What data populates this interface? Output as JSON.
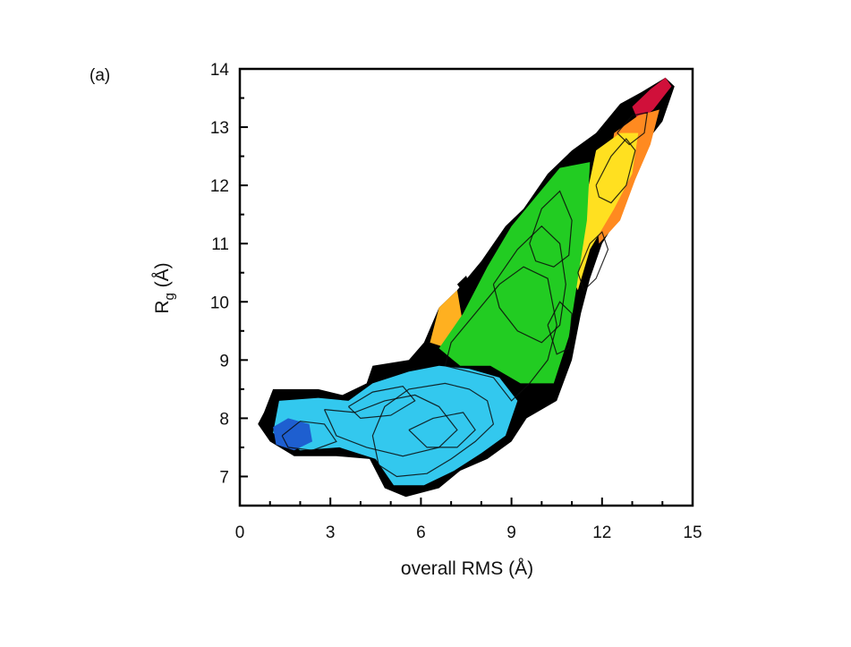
{
  "chart_data": {
    "type": "heatmap",
    "panel_label": "(a)",
    "xlabel": "overall RMS (Å)",
    "ylabel_main": "R",
    "ylabel_sub": "g",
    "ylabel_rest": " (Å)",
    "xlim": [
      0,
      15
    ],
    "ylim": [
      6.5,
      14
    ],
    "xticks": [
      0,
      3,
      6,
      9,
      12,
      15
    ],
    "yticks": [
      7,
      8,
      9,
      10,
      11,
      12,
      13,
      14
    ],
    "grid": false,
    "colormap": [
      "#1e5fd0",
      "#33c8ee",
      "#22cc22",
      "#ffe020",
      "#ff8a20",
      "#d0103a"
    ],
    "populated_region_outline": [
      [
        0.8,
        8.1
      ],
      [
        1.1,
        8.5
      ],
      [
        2.6,
        8.5
      ],
      [
        3.4,
        8.4
      ],
      [
        4.2,
        8.6
      ],
      [
        4.4,
        8.9
      ],
      [
        5.6,
        9.0
      ],
      [
        6.1,
        9.3
      ],
      [
        6.6,
        9.9
      ],
      [
        7.2,
        10.2
      ],
      [
        8.0,
        10.7
      ],
      [
        8.8,
        11.3
      ],
      [
        9.4,
        11.6
      ],
      [
        10.2,
        12.2
      ],
      [
        11.0,
        12.6
      ],
      [
        11.8,
        12.9
      ],
      [
        12.6,
        13.4
      ],
      [
        13.3,
        13.6
      ],
      [
        14.1,
        13.85
      ],
      [
        14.4,
        13.7
      ],
      [
        14.0,
        13.1
      ],
      [
        13.4,
        12.7
      ],
      [
        13.0,
        12.0
      ],
      [
        12.6,
        11.5
      ],
      [
        12.0,
        11.0
      ],
      [
        11.6,
        10.4
      ],
      [
        11.3,
        9.8
      ],
      [
        11.0,
        9.0
      ],
      [
        10.5,
        8.3
      ],
      [
        9.5,
        8.0
      ],
      [
        9.0,
        7.6
      ],
      [
        8.2,
        7.3
      ],
      [
        7.3,
        7.1
      ],
      [
        6.6,
        6.8
      ],
      [
        5.5,
        6.65
      ],
      [
        4.8,
        6.8
      ],
      [
        4.3,
        7.3
      ],
      [
        3.2,
        7.35
      ],
      [
        1.8,
        7.35
      ],
      [
        1.0,
        7.6
      ],
      [
        0.6,
        7.9
      ]
    ],
    "color_zones": [
      {
        "level": "high",
        "color": "#d0103a",
        "points": [
          [
            13.0,
            13.35
          ],
          [
            13.6,
            13.65
          ],
          [
            14.1,
            13.85
          ],
          [
            14.3,
            13.7
          ],
          [
            13.7,
            13.3
          ],
          [
            13.2,
            13.1
          ]
        ]
      },
      {
        "level": "orange",
        "color": "#ff8a20",
        "points": [
          [
            12.4,
            12.9
          ],
          [
            13.2,
            13.2
          ],
          [
            13.9,
            13.3
          ],
          [
            13.6,
            12.7
          ],
          [
            13.1,
            12.1
          ],
          [
            12.6,
            11.4
          ],
          [
            11.9,
            11.0
          ],
          [
            11.8,
            11.6
          ],
          [
            12.2,
            12.2
          ]
        ]
      },
      {
        "level": "yellow",
        "color": "#ffe020",
        "points": [
          [
            11.8,
            12.6
          ],
          [
            12.6,
            12.9
          ],
          [
            13.2,
            12.9
          ],
          [
            13.0,
            12.2
          ],
          [
            12.4,
            11.6
          ],
          [
            11.6,
            10.9
          ],
          [
            11.2,
            10.2
          ],
          [
            10.9,
            10.5
          ],
          [
            11.3,
            11.4
          ],
          [
            11.6,
            12.1
          ]
        ]
      },
      {
        "level": "orange-left",
        "color": "#ffb020",
        "points": [
          [
            6.3,
            9.3
          ],
          [
            6.6,
            9.9
          ],
          [
            7.2,
            10.2
          ],
          [
            7.4,
            9.6
          ],
          [
            6.9,
            9.2
          ]
        ]
      },
      {
        "level": "green",
        "color": "#22cc22",
        "points": [
          [
            6.6,
            9.2
          ],
          [
            7.4,
            9.8
          ],
          [
            8.2,
            10.6
          ],
          [
            9.0,
            11.3
          ],
          [
            9.8,
            11.8
          ],
          [
            10.6,
            12.3
          ],
          [
            11.6,
            12.4
          ],
          [
            11.5,
            11.4
          ],
          [
            11.2,
            10.4
          ],
          [
            10.9,
            9.4
          ],
          [
            10.4,
            8.6
          ],
          [
            9.3,
            8.6
          ],
          [
            8.3,
            8.9
          ],
          [
            7.3,
            8.9
          ]
        ]
      },
      {
        "level": "cyan",
        "color": "#33c8ee",
        "points": [
          [
            1.3,
            8.3
          ],
          [
            2.6,
            8.35
          ],
          [
            3.6,
            8.3
          ],
          [
            4.4,
            8.6
          ],
          [
            5.6,
            8.8
          ],
          [
            6.6,
            8.9
          ],
          [
            7.6,
            8.85
          ],
          [
            8.6,
            8.7
          ],
          [
            9.2,
            8.3
          ],
          [
            8.8,
            7.7
          ],
          [
            8.0,
            7.4
          ],
          [
            7.1,
            7.1
          ],
          [
            6.1,
            6.85
          ],
          [
            5.1,
            6.85
          ],
          [
            4.5,
            7.3
          ],
          [
            3.3,
            7.5
          ],
          [
            2.0,
            7.45
          ],
          [
            1.1,
            7.75
          ]
        ]
      },
      {
        "level": "low",
        "color": "#1e5fd0",
        "points": [
          [
            1.1,
            7.85
          ],
          [
            1.6,
            8.0
          ],
          [
            2.3,
            7.9
          ],
          [
            2.4,
            7.6
          ],
          [
            1.8,
            7.45
          ],
          [
            1.2,
            7.55
          ]
        ]
      }
    ],
    "contour_lines": [
      [
        [
          1.4,
          7.7
        ],
        [
          2.0,
          7.95
        ],
        [
          2.8,
          7.9
        ],
        [
          3.2,
          7.6
        ],
        [
          2.4,
          7.45
        ],
        [
          1.6,
          7.5
        ],
        [
          1.4,
          7.7
        ]
      ],
      [
        [
          2.8,
          8.15
        ],
        [
          3.8,
          8.1
        ],
        [
          4.8,
          8.3
        ],
        [
          5.8,
          8.4
        ],
        [
          6.6,
          8.2
        ],
        [
          7.2,
          7.8
        ],
        [
          6.6,
          7.5
        ],
        [
          5.4,
          7.35
        ],
        [
          4.2,
          7.5
        ],
        [
          3.2,
          7.7
        ],
        [
          2.8,
          8.15
        ]
      ],
      [
        [
          4.6,
          7.2
        ],
        [
          5.2,
          7.0
        ],
        [
          6.2,
          7.05
        ],
        [
          7.0,
          7.3
        ],
        [
          7.8,
          7.6
        ],
        [
          8.4,
          7.9
        ],
        [
          8.2,
          8.3
        ],
        [
          7.6,
          8.5
        ],
        [
          6.8,
          8.6
        ],
        [
          5.6,
          8.5
        ],
        [
          4.8,
          8.2
        ],
        [
          4.4,
          7.7
        ],
        [
          4.6,
          7.2
        ]
      ],
      [
        [
          6.8,
          8.9
        ],
        [
          7.6,
          8.8
        ],
        [
          8.4,
          8.7
        ],
        [
          9.0,
          8.3
        ],
        [
          9.6,
          8.6
        ],
        [
          10.2,
          9.0
        ],
        [
          10.5,
          9.6
        ],
        [
          10.2,
          10.4
        ],
        [
          9.4,
          10.6
        ],
        [
          8.6,
          10.3
        ],
        [
          7.8,
          9.8
        ],
        [
          7.0,
          9.3
        ],
        [
          6.8,
          8.9
        ]
      ],
      [
        [
          8.4,
          10.3
        ],
        [
          9.2,
          10.9
        ],
        [
          10.0,
          11.3
        ],
        [
          10.6,
          11.0
        ],
        [
          10.8,
          10.3
        ],
        [
          10.6,
          9.6
        ],
        [
          10.0,
          9.3
        ],
        [
          9.2,
          9.5
        ],
        [
          8.6,
          9.9
        ],
        [
          8.4,
          10.3
        ]
      ],
      [
        [
          9.6,
          11.0
        ],
        [
          10.0,
          11.6
        ],
        [
          10.6,
          11.9
        ],
        [
          11.0,
          11.4
        ],
        [
          10.9,
          10.8
        ],
        [
          10.4,
          10.6
        ],
        [
          9.8,
          10.7
        ],
        [
          9.6,
          11.0
        ]
      ],
      [
        [
          10.2,
          9.6
        ],
        [
          10.6,
          10.0
        ],
        [
          11.0,
          9.8
        ],
        [
          10.9,
          9.2
        ],
        [
          10.5,
          9.1
        ],
        [
          10.2,
          9.6
        ]
      ],
      [
        [
          11.8,
          12.0
        ],
        [
          12.3,
          12.5
        ],
        [
          12.8,
          12.8
        ],
        [
          13.1,
          12.6
        ],
        [
          12.8,
          12.0
        ],
        [
          12.3,
          11.7
        ],
        [
          11.9,
          11.8
        ],
        [
          11.8,
          12.0
        ]
      ],
      [
        [
          12.5,
          12.9
        ],
        [
          13.0,
          13.2
        ],
        [
          13.5,
          13.25
        ],
        [
          13.4,
          12.9
        ],
        [
          12.9,
          12.7
        ],
        [
          12.5,
          12.9
        ]
      ],
      [
        [
          11.2,
          10.5
        ],
        [
          11.6,
          11.0
        ],
        [
          12.0,
          11.2
        ],
        [
          12.2,
          10.9
        ],
        [
          11.8,
          10.4
        ],
        [
          11.4,
          10.2
        ],
        [
          11.2,
          10.5
        ]
      ],
      [
        [
          3.6,
          8.2
        ],
        [
          4.4,
          8.45
        ],
        [
          5.4,
          8.55
        ],
        [
          5.8,
          8.3
        ],
        [
          5.0,
          8.05
        ],
        [
          4.0,
          8.0
        ],
        [
          3.6,
          8.2
        ]
      ],
      [
        [
          5.6,
          7.8
        ],
        [
          6.4,
          8.0
        ],
        [
          7.4,
          8.1
        ],
        [
          7.8,
          7.8
        ],
        [
          7.2,
          7.5
        ],
        [
          6.2,
          7.5
        ],
        [
          5.6,
          7.8
        ]
      ]
    ],
    "stray_islands": [
      [
        [
          7.2,
          10.3
        ],
        [
          7.5,
          10.45
        ],
        [
          7.6,
          10.3
        ],
        [
          7.35,
          10.2
        ]
      ]
    ]
  }
}
